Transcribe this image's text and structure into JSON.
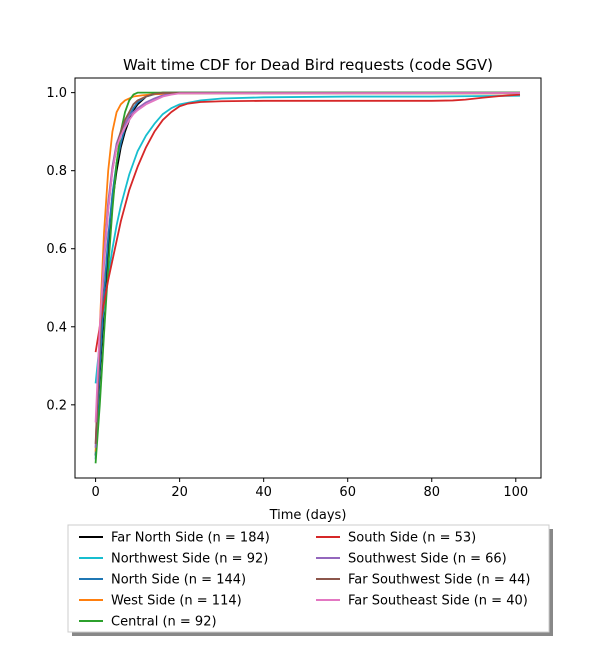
{
  "chart_data": {
    "type": "line",
    "title": "Wait time CDF for Dead Bird  requests (code SGV)",
    "xlabel": "Time (days)",
    "ylabel": "",
    "xlim": [
      -4.9,
      106
    ],
    "ylim": [
      0.0125,
      1.0375
    ],
    "x_ticks": [
      0,
      20,
      40,
      60,
      80,
      100
    ],
    "y_ticks": [
      0.2,
      0.4,
      0.6,
      0.8,
      1.0
    ],
    "grid": false,
    "legend": {
      "placement": "below",
      "columns": 2
    },
    "series": [
      {
        "name": "Far North Side (n = 184)",
        "color": "#000000",
        "points": [
          [
            0,
            0.07
          ],
          [
            1,
            0.28
          ],
          [
            2,
            0.45
          ],
          [
            3,
            0.6
          ],
          [
            4,
            0.72
          ],
          [
            5,
            0.8
          ],
          [
            6,
            0.86
          ],
          [
            7,
            0.9
          ],
          [
            8,
            0.93
          ],
          [
            9,
            0.955
          ],
          [
            10,
            0.97
          ],
          [
            11,
            0.98
          ],
          [
            12,
            0.99
          ],
          [
            14,
            0.997
          ],
          [
            16,
            1.0
          ],
          [
            101,
            1.0
          ]
        ]
      },
      {
        "name": "Northwest Side (n = 92)",
        "color": "#17becf",
        "points": [
          [
            0,
            0.255
          ],
          [
            1,
            0.36
          ],
          [
            2,
            0.45
          ],
          [
            3,
            0.53
          ],
          [
            4,
            0.6
          ],
          [
            5,
            0.66
          ],
          [
            6,
            0.71
          ],
          [
            7,
            0.75
          ],
          [
            8,
            0.79
          ],
          [
            9,
            0.82
          ],
          [
            10,
            0.85
          ],
          [
            12,
            0.89
          ],
          [
            14,
            0.92
          ],
          [
            16,
            0.945
          ],
          [
            18,
            0.96
          ],
          [
            20,
            0.97
          ],
          [
            25,
            0.98
          ],
          [
            30,
            0.985
          ],
          [
            40,
            0.988
          ],
          [
            60,
            0.99
          ],
          [
            80,
            0.99
          ],
          [
            90,
            0.991
          ],
          [
            101,
            0.992
          ]
        ]
      },
      {
        "name": "North Side (n = 144)",
        "color": "#1f77b4",
        "points": [
          [
            0,
            0.06
          ],
          [
            1,
            0.3
          ],
          [
            2,
            0.48
          ],
          [
            3,
            0.63
          ],
          [
            4,
            0.74
          ],
          [
            5,
            0.82
          ],
          [
            6,
            0.87
          ],
          [
            7,
            0.91
          ],
          [
            8,
            0.94
          ],
          [
            9,
            0.96
          ],
          [
            10,
            0.975
          ],
          [
            12,
            0.99
          ],
          [
            14,
            0.996
          ],
          [
            16,
            0.998
          ],
          [
            101,
            0.998
          ]
        ]
      },
      {
        "name": "West Side (n = 114)",
        "color": "#ff7f0e",
        "points": [
          [
            0,
            0.08
          ],
          [
            1,
            0.4
          ],
          [
            2,
            0.64
          ],
          [
            3,
            0.8
          ],
          [
            4,
            0.9
          ],
          [
            5,
            0.95
          ],
          [
            6,
            0.97
          ],
          [
            7,
            0.98
          ],
          [
            9,
            0.99
          ],
          [
            11,
            0.993
          ],
          [
            14,
            0.996
          ],
          [
            20,
            0.998
          ],
          [
            101,
            0.998
          ]
        ]
      },
      {
        "name": "Central (n = 92)",
        "color": "#2ca02c",
        "points": [
          [
            0,
            0.05
          ],
          [
            1,
            0.2
          ],
          [
            2,
            0.38
          ],
          [
            3,
            0.55
          ],
          [
            4,
            0.7
          ],
          [
            5,
            0.82
          ],
          [
            6,
            0.9
          ],
          [
            7,
            0.95
          ],
          [
            8,
            0.98
          ],
          [
            9,
            0.995
          ],
          [
            10,
            1.0
          ],
          [
            101,
            1.0
          ]
        ]
      },
      {
        "name": "South Side (n = 53)",
        "color": "#d62728",
        "points": [
          [
            0,
            0.335
          ],
          [
            1,
            0.4
          ],
          [
            2,
            0.46
          ],
          [
            3,
            0.52
          ],
          [
            4,
            0.57
          ],
          [
            5,
            0.62
          ],
          [
            6,
            0.67
          ],
          [
            7,
            0.71
          ],
          [
            8,
            0.75
          ],
          [
            9,
            0.78
          ],
          [
            10,
            0.81
          ],
          [
            12,
            0.86
          ],
          [
            14,
            0.9
          ],
          [
            16,
            0.93
          ],
          [
            18,
            0.95
          ],
          [
            20,
            0.965
          ],
          [
            22,
            0.972
          ],
          [
            25,
            0.976
          ],
          [
            30,
            0.978
          ],
          [
            40,
            0.979
          ],
          [
            60,
            0.979
          ],
          [
            80,
            0.979
          ],
          [
            85,
            0.98
          ],
          [
            88,
            0.982
          ],
          [
            92,
            0.987
          ],
          [
            96,
            0.991
          ],
          [
            101,
            0.995
          ]
        ]
      },
      {
        "name": "Southwest Side (n = 66)",
        "color": "#9467bd",
        "points": [
          [
            0,
            0.09
          ],
          [
            1,
            0.38
          ],
          [
            2,
            0.58
          ],
          [
            3,
            0.72
          ],
          [
            4,
            0.81
          ],
          [
            5,
            0.87
          ],
          [
            6,
            0.9
          ],
          [
            7,
            0.92
          ],
          [
            8,
            0.94
          ],
          [
            9,
            0.95
          ],
          [
            10,
            0.96
          ],
          [
            12,
            0.975
          ],
          [
            14,
            0.985
          ],
          [
            16,
            0.993
          ],
          [
            18,
            0.997
          ],
          [
            20,
            0.999
          ],
          [
            101,
            0.999
          ]
        ]
      },
      {
        "name": "Far Southwest Side (n = 44)",
        "color": "#8c564b",
        "points": [
          [
            0,
            0.1
          ],
          [
            1,
            0.36
          ],
          [
            2,
            0.56
          ],
          [
            3,
            0.7
          ],
          [
            4,
            0.8
          ],
          [
            5,
            0.86
          ],
          [
            6,
            0.9
          ],
          [
            7,
            0.93
          ],
          [
            8,
            0.95
          ],
          [
            9,
            0.97
          ],
          [
            10,
            0.98
          ],
          [
            12,
            0.99
          ],
          [
            14,
            0.997
          ],
          [
            16,
            0.999
          ],
          [
            101,
            0.999
          ]
        ]
      },
      {
        "name": "Far Southeast Side (n = 40)",
        "color": "#e377c2",
        "points": [
          [
            0,
            0.155
          ],
          [
            1,
            0.4
          ],
          [
            2,
            0.57
          ],
          [
            3,
            0.7
          ],
          [
            4,
            0.8
          ],
          [
            5,
            0.86
          ],
          [
            6,
            0.89
          ],
          [
            7,
            0.91
          ],
          [
            8,
            0.93
          ],
          [
            9,
            0.945
          ],
          [
            10,
            0.955
          ],
          [
            12,
            0.97
          ],
          [
            14,
            0.98
          ],
          [
            16,
            0.99
          ],
          [
            18,
            0.995
          ],
          [
            20,
            0.998
          ],
          [
            101,
            0.999
          ]
        ]
      }
    ]
  }
}
